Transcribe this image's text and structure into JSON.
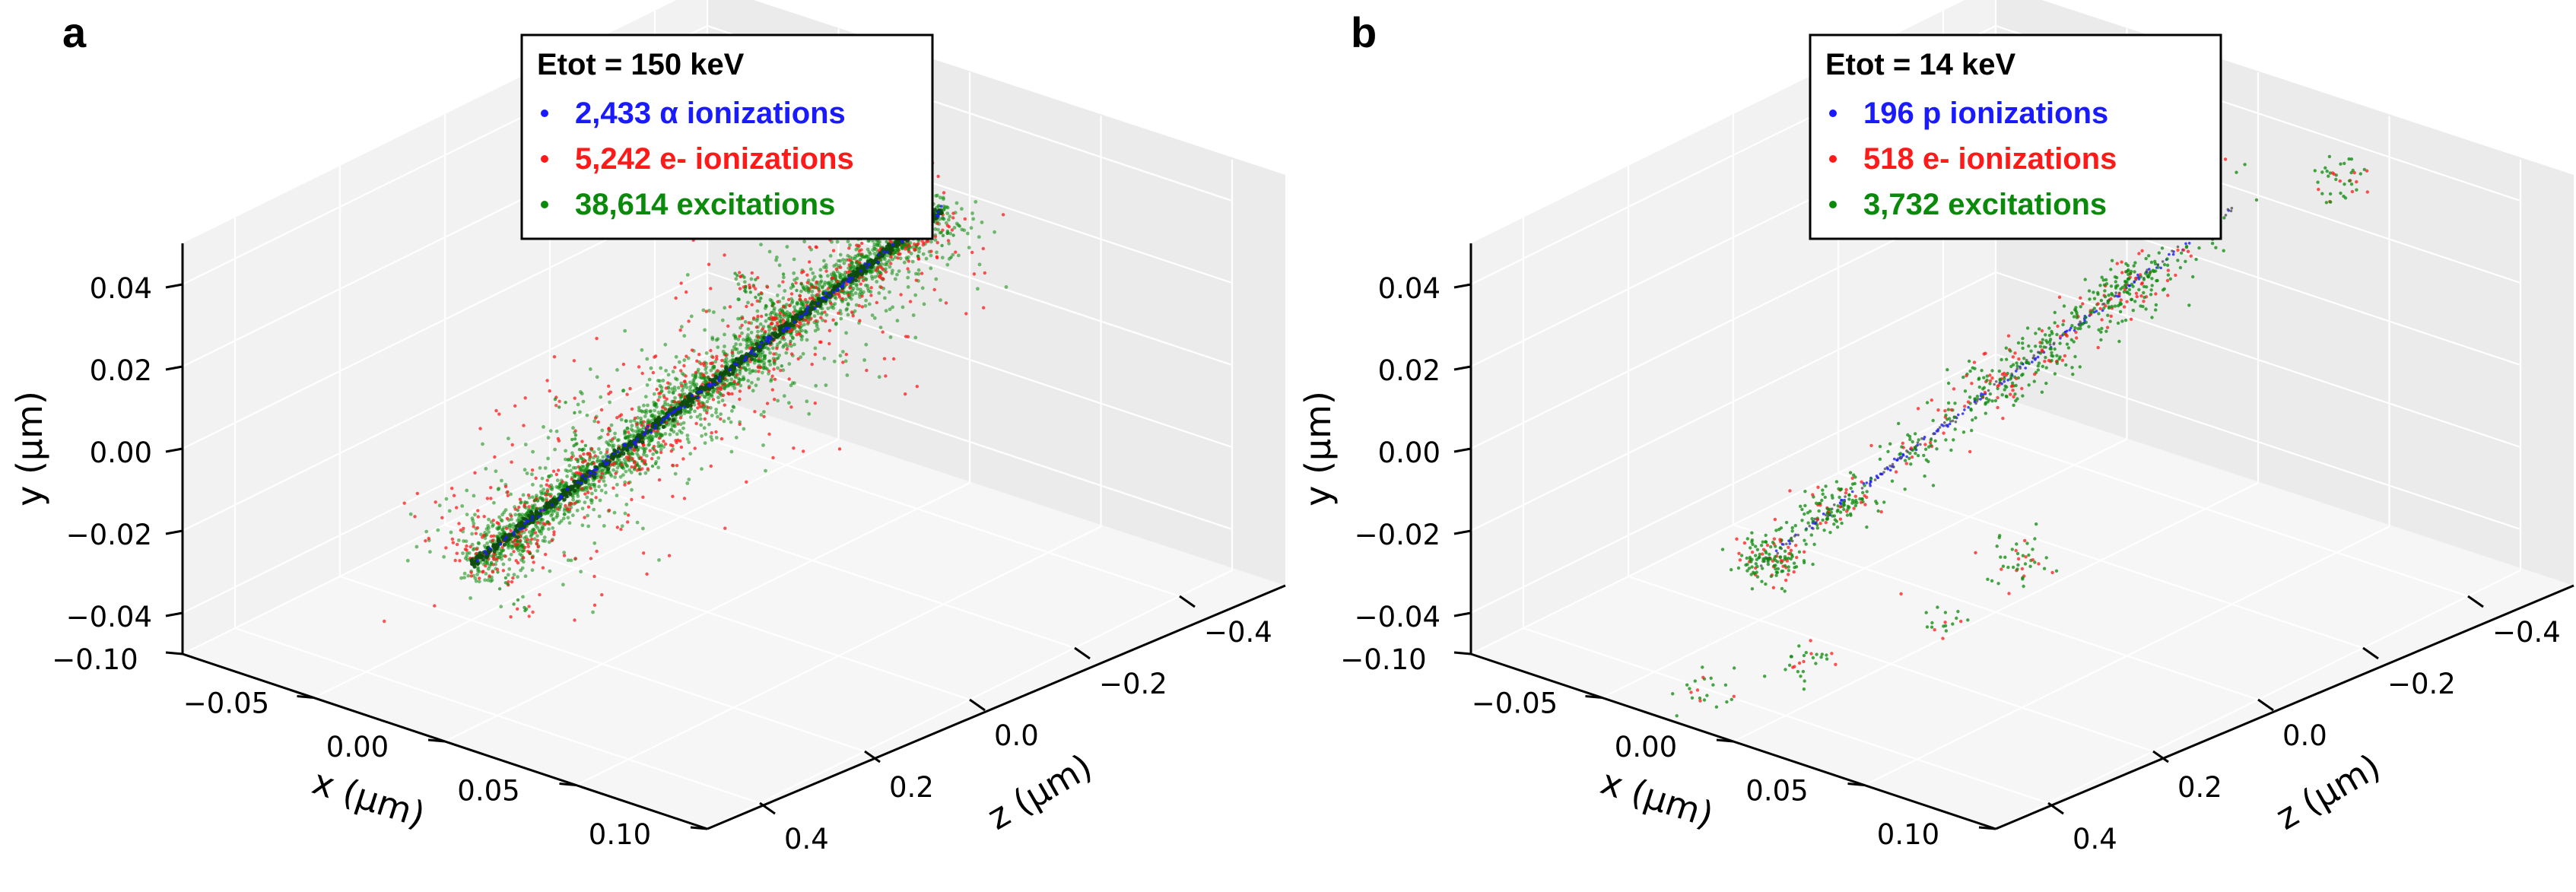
{
  "chart_data": [
    {
      "type": "scatter",
      "projection": "3d",
      "panel_label": "a",
      "xlabel": "x (µm)",
      "ylabel": "y (µm)",
      "zlabel": "z (µm)",
      "x_ticks": [
        "−0.10",
        "−0.05",
        "0.00",
        "0.05",
        "0.10"
      ],
      "y_ticks": [
        "−0.04",
        "−0.02",
        "0.00",
        "0.02",
        "0.04"
      ],
      "z_ticks": [
        "−0.4",
        "−0.2",
        "0.0",
        "0.2",
        "0.4"
      ],
      "xlim": [
        -0.1,
        0.1
      ],
      "ylim": [
        -0.05,
        0.05
      ],
      "zlim": [
        -0.5,
        0.5
      ],
      "legend_title": "Etot = 150 keV",
      "legend_location": "top-center",
      "track": {
        "start": [
          0.0,
          -0.01,
          0.45
        ],
        "end": [
          0.0,
          0.02,
          -0.45
        ]
      },
      "series": [
        {
          "name": "2,433 α ionizations",
          "color": "#1a1aff",
          "spread": "tight"
        },
        {
          "name": "5,242 e- ionizations",
          "color": "#ff1a1a",
          "spread": "wide"
        },
        {
          "name": "38,614 excitations",
          "color": "#0a8a0a",
          "spread": "dense"
        }
      ]
    },
    {
      "type": "scatter",
      "projection": "3d",
      "panel_label": "b",
      "xlabel": "x (µm)",
      "ylabel": "y (µm)",
      "zlabel": "z (µm)",
      "x_ticks": [
        "−0.10",
        "−0.05",
        "0.00",
        "0.05",
        "0.10"
      ],
      "y_ticks": [
        "−0.04",
        "−0.02",
        "0.00",
        "0.02",
        "0.04"
      ],
      "z_ticks": [
        "−0.4",
        "−0.2",
        "0.0",
        "0.2",
        "0.4"
      ],
      "xlim": [
        -0.1,
        0.1
      ],
      "ylim": [
        -0.05,
        0.05
      ],
      "zlim": [
        -0.5,
        0.5
      ],
      "legend_title": "Etot = 14 keV",
      "legend_location": "top-center",
      "track": {
        "start": [
          0.0,
          -0.01,
          0.45
        ],
        "end": [
          0.0,
          0.02,
          -0.45
        ]
      },
      "series": [
        {
          "name": "196 p ionizations",
          "color": "#1a1aff",
          "spread": "tight"
        },
        {
          "name": "518 e- ionizations",
          "color": "#ff1a1a",
          "spread": "sparse"
        },
        {
          "name": "3,732 excitations",
          "color": "#0a8a0a",
          "spread": "sparse"
        }
      ]
    }
  ]
}
